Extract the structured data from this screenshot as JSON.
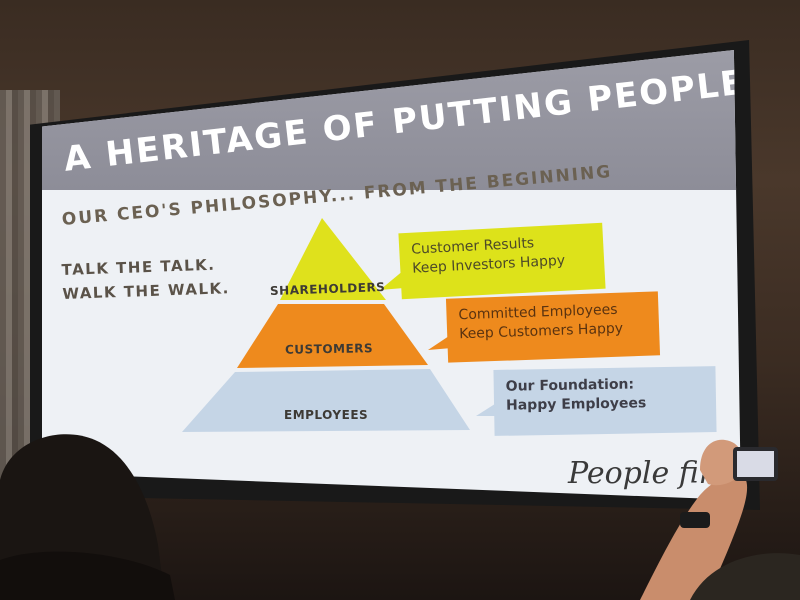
{
  "slide": {
    "title": "A HERITAGE OF PUTTING PEOPLE FIRST",
    "subtitle": "OUR CEO'S PHILOSOPHY... FROM THE BEGINNING",
    "tagline": [
      "TALK THE TALK.",
      "WALK THE WALK."
    ],
    "pyramid": {
      "levels": [
        {
          "label": "SHAREHOLDERS",
          "color": "#dfe11c"
        },
        {
          "label": "CUSTOMERS",
          "color": "#ee8a1d"
        },
        {
          "label": "EMPLOYEES",
          "color": "#c5d5e6"
        }
      ]
    },
    "callouts": [
      {
        "lines": [
          "Customer Results",
          "Keep Investors Happy"
        ],
        "color": "#dde21a"
      },
      {
        "lines": [
          "Committed Employees",
          "Keep Customers Happy"
        ],
        "color": "#ee8a1d"
      },
      {
        "lines": [
          "Our Foundation:",
          "Happy Employees"
        ],
        "color": "#c5d5e6"
      }
    ],
    "signature": "People fir"
  },
  "colors": {
    "banner": "#8d8d98",
    "slide_background": "#eef1f5",
    "title_text": "#ffffff",
    "subtitle_text": "#6b6152"
  }
}
